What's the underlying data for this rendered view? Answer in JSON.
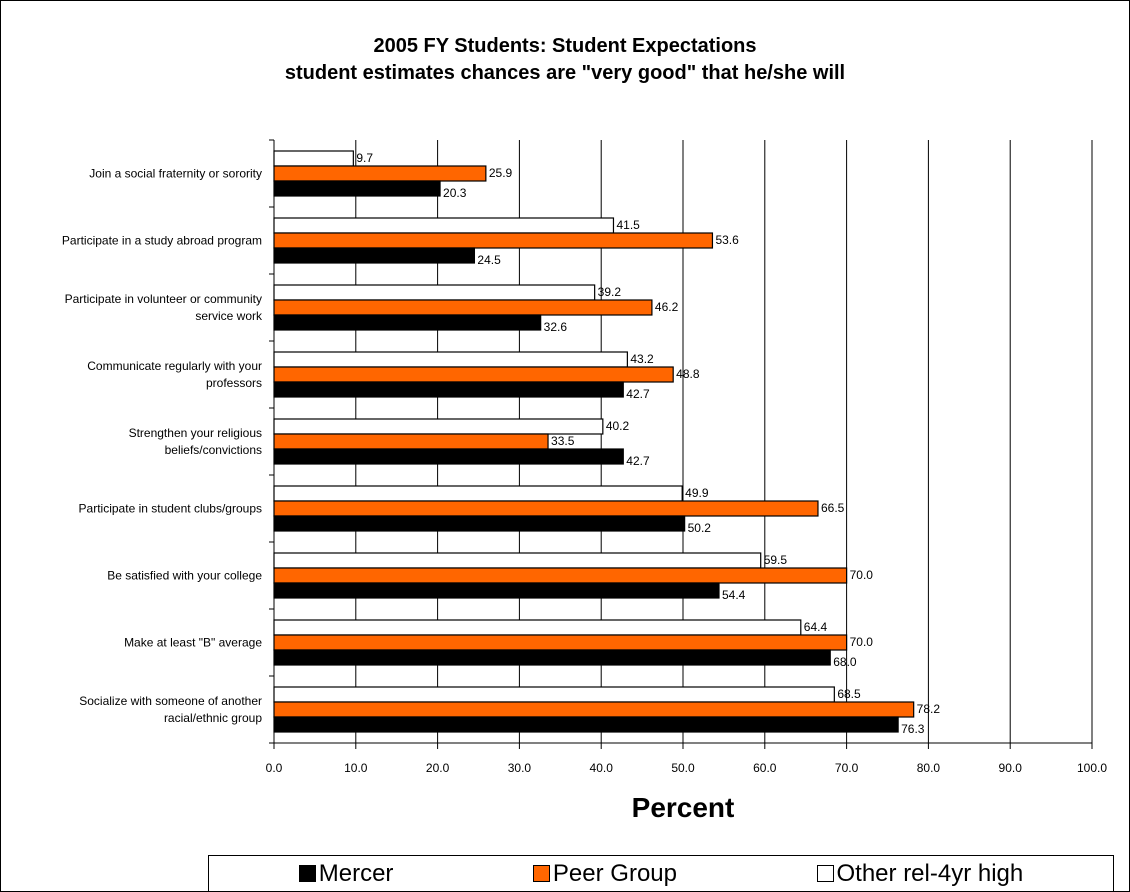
{
  "chart_data": {
    "type": "bar",
    "orientation": "horizontal",
    "title": "2005 FY Students: Student Expectations",
    "subtitle": "student estimates chances are \"very good\" that he/she will",
    "xlabel": "Percent",
    "ylabel": "",
    "xlim": [
      0,
      100
    ],
    "x_ticks": [
      "0.0",
      "10.0",
      "20.0",
      "30.0",
      "40.0",
      "50.0",
      "60.0",
      "70.0",
      "80.0",
      "90.0",
      "100.0"
    ],
    "grid": true,
    "legend_position": "bottom",
    "categories": [
      [
        "Join a social fraternity or sorority"
      ],
      [
        "Participate in a study abroad program"
      ],
      [
        "Participate in volunteer or community",
        "service work"
      ],
      [
        "Communicate regularly with your",
        "professors"
      ],
      [
        "Strengthen your religious",
        "beliefs/convictions"
      ],
      [
        "Participate in student clubs/groups"
      ],
      [
        "Be satisfied with your college"
      ],
      [
        "Make at least \"B\" average"
      ],
      [
        "Socialize with someone of another",
        "racial/ethnic group"
      ]
    ],
    "series": [
      {
        "name": "Mercer",
        "color": "#000000",
        "values": [
          20.3,
          24.5,
          32.6,
          42.7,
          42.7,
          50.2,
          54.4,
          68.0,
          76.3
        ],
        "labels": [
          "20.3",
          "24.5",
          "32.6",
          "42.7",
          "42.7",
          "50.2",
          "54.4",
          "68.0",
          "76.3"
        ]
      },
      {
        "name": "Peer Group",
        "color": "#ff6600",
        "values": [
          25.9,
          53.6,
          46.2,
          48.8,
          33.5,
          66.5,
          70.0,
          70.0,
          78.2
        ],
        "labels": [
          "25.9",
          "53.6",
          "46.2",
          "48.8",
          "33.5",
          "66.5",
          "70.0",
          "70.0",
          "78.2"
        ]
      },
      {
        "name": "Other rel-4yr high",
        "color": "#ffffff",
        "values": [
          9.7,
          41.5,
          39.2,
          43.2,
          40.2,
          49.9,
          59.5,
          64.4,
          68.5
        ],
        "labels": [
          "9.7",
          "41.5",
          "39.2",
          "43.2",
          "40.2",
          "49.9",
          "59.5",
          "64.4",
          "68.5"
        ]
      }
    ]
  },
  "legend": {
    "mercer": "Mercer",
    "peer": "Peer Group",
    "other": "Other rel-4yr high"
  }
}
